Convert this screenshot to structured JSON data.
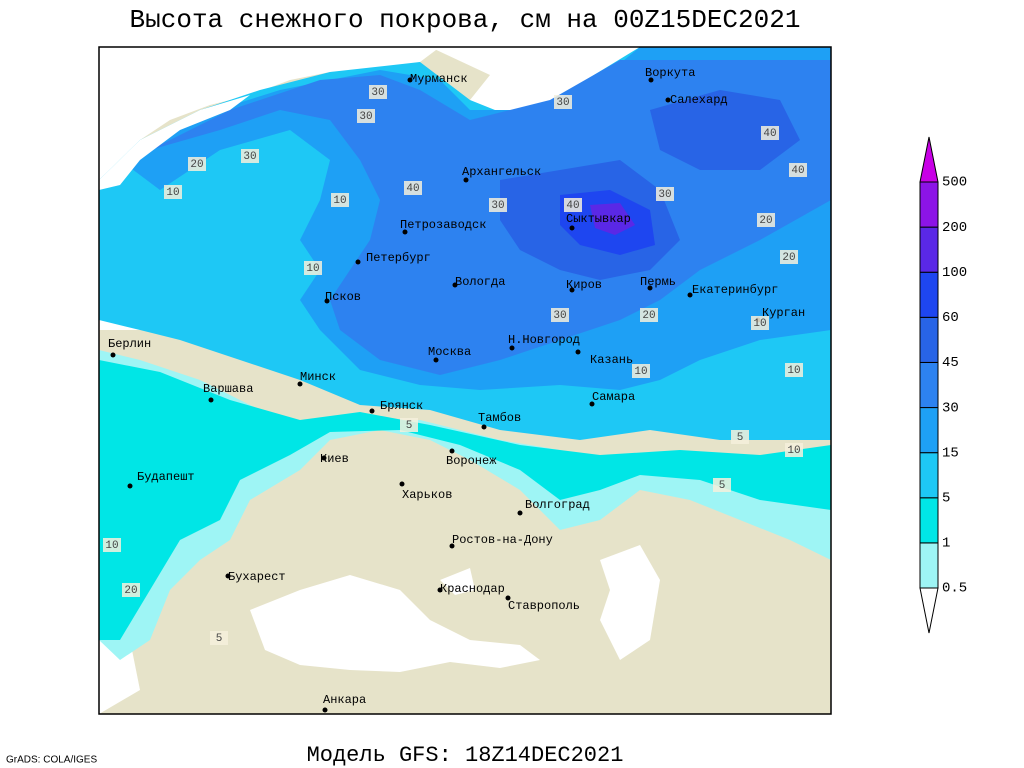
{
  "title": "Высота снежного покрова, см на 00Z15DEC2021",
  "footer": "Модель GFS: 18Z14DEC2021",
  "credit": "GrADS: COLA/IGES",
  "legend": {
    "levels": [
      0.5,
      1,
      5,
      15,
      30,
      45,
      60,
      100,
      200,
      500
    ],
    "colors": [
      "#ffffff",
      "#9ef5f5",
      "#00e6e6",
      "#1ec8f5",
      "#1ea0f5",
      "#2d82f0",
      "#2864e6",
      "#1e46f0",
      "#5a28e6",
      "#8c14e6",
      "#c800e6"
    ]
  },
  "map_colors": {
    "land": "#e6e3c9",
    "sea": "#ffffff"
  },
  "cities": [
    "Мурманск",
    "Воркута",
    "Салехард",
    "Архангельск",
    "Сыктывкар",
    "Петрозаводск",
    "Петербург",
    "Вологда",
    "Киров",
    "Пермь",
    "Екатеринбург",
    "Курган",
    "Псков",
    "Н.Новгород",
    "Казань",
    "Москва",
    "Минск",
    "Берлин",
    "Варшава",
    "Брянск",
    "Тамбов",
    "Самара",
    "Воронеж",
    "Киев",
    "Будапешт",
    "Харьков",
    "Волгоград",
    "Ростов-на-Дону",
    "Бухарест",
    "Краснодар",
    "Ставрополь",
    "Анкара"
  ],
  "contour_labels": [
    30,
    30,
    30,
    20,
    30,
    40,
    30,
    40,
    10,
    10,
    40,
    40,
    30,
    20,
    20,
    10,
    10,
    30,
    20,
    10,
    5,
    10,
    10,
    5,
    10,
    20,
    5,
    5
  ]
}
